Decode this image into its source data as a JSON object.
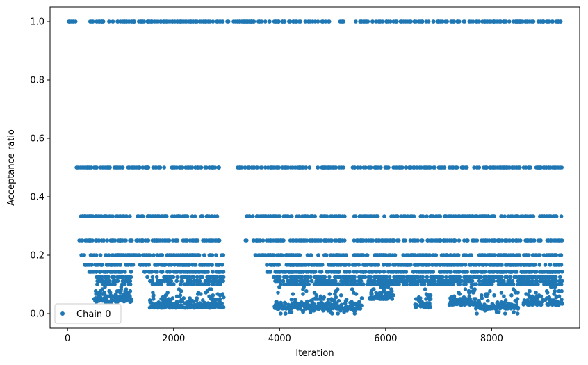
{
  "chart_data": {
    "type": "scatter",
    "title": "",
    "xlabel": "Iteration",
    "ylabel": "Acceptance ratio",
    "xlim": [
      -330,
      9660
    ],
    "ylim": [
      -0.05,
      1.05
    ],
    "xticks": [
      0,
      2000,
      4000,
      6000,
      8000
    ],
    "xtick_labels": [
      "0",
      "2000",
      "4000",
      "6000",
      "8000"
    ],
    "yticks": [
      0.0,
      0.2,
      0.4,
      0.6,
      0.8,
      1.0
    ],
    "ytick_labels": [
      "0.0",
      "0.2",
      "0.4",
      "0.6",
      "0.8",
      "1.0"
    ],
    "grid": false,
    "legend": {
      "position": "lower-left",
      "entries": [
        "Chain 0"
      ]
    },
    "series": [
      {
        "name": "Chain 0",
        "color": "#1f77b4",
        "marker": "circle",
        "bands": [
          {
            "y": 1.0,
            "segments": [
              [
                0,
                4950
              ],
              [
                5080,
                5260
              ],
              [
                5420,
                9330
              ]
            ]
          },
          {
            "y": 0.5,
            "segments": [
              [
                150,
                2960
              ],
              [
                3200,
                5250
              ],
              [
                5370,
                9330
              ]
            ]
          },
          {
            "y": 0.333,
            "segments": [
              [
                250,
                2950
              ],
              [
                3350,
                5270
              ],
              [
                5400,
                9330
              ]
            ]
          },
          {
            "y": 0.25,
            "segments": [
              [
                200,
                2950
              ],
              [
                3340,
                3380
              ],
              [
                3500,
                5280
              ],
              [
                5400,
                9330
              ]
            ]
          },
          {
            "y": 0.2,
            "segments": [
              [
                250,
                2950
              ],
              [
                3520,
                3560
              ],
              [
                3600,
                5290
              ],
              [
                5400,
                9330
              ]
            ]
          },
          {
            "y": 0.167,
            "segments": [
              [
                300,
                1250
              ],
              [
                1350,
                2950
              ],
              [
                3750,
                9330
              ]
            ]
          },
          {
            "y": 0.143,
            "segments": [
              [
                400,
                1200
              ],
              [
                1450,
                2950
              ],
              [
                3750,
                9330
              ]
            ]
          },
          {
            "y": 0.125,
            "segments": [
              [
                500,
                1200
              ],
              [
                1500,
                2950
              ],
              [
                3800,
                9330
              ]
            ]
          },
          {
            "y": 0.111,
            "segments": [
              [
                550,
                1200
              ],
              [
                1550,
                2950
              ],
              [
                3900,
                9330
              ]
            ]
          },
          {
            "y": 0.1,
            "segments": [
              [
                550,
                1200
              ],
              [
                1600,
                2950
              ],
              [
                4000,
                9330
              ]
            ]
          }
        ],
        "clusters": [
          {
            "x": [
              500,
              1200
            ],
            "y": [
              0.04,
              0.1
            ]
          },
          {
            "x": [
              1550,
              2950
            ],
            "y": [
              0.02,
              0.1
            ]
          },
          {
            "x": [
              3900,
              5550
            ],
            "y": [
              0.0,
              0.1
            ]
          },
          {
            "x": [
              5700,
              6150
            ],
            "y": [
              0.05,
              0.1
            ]
          },
          {
            "x": [
              6550,
              6850
            ],
            "y": [
              0.02,
              0.1
            ]
          },
          {
            "x": [
              7200,
              7700
            ],
            "y": [
              0.03,
              0.1
            ]
          },
          {
            "x": [
              7700,
              8500
            ],
            "y": [
              0.0,
              0.1
            ]
          },
          {
            "x": [
              8600,
              9330
            ],
            "y": [
              0.03,
              0.1
            ]
          }
        ]
      }
    ]
  }
}
